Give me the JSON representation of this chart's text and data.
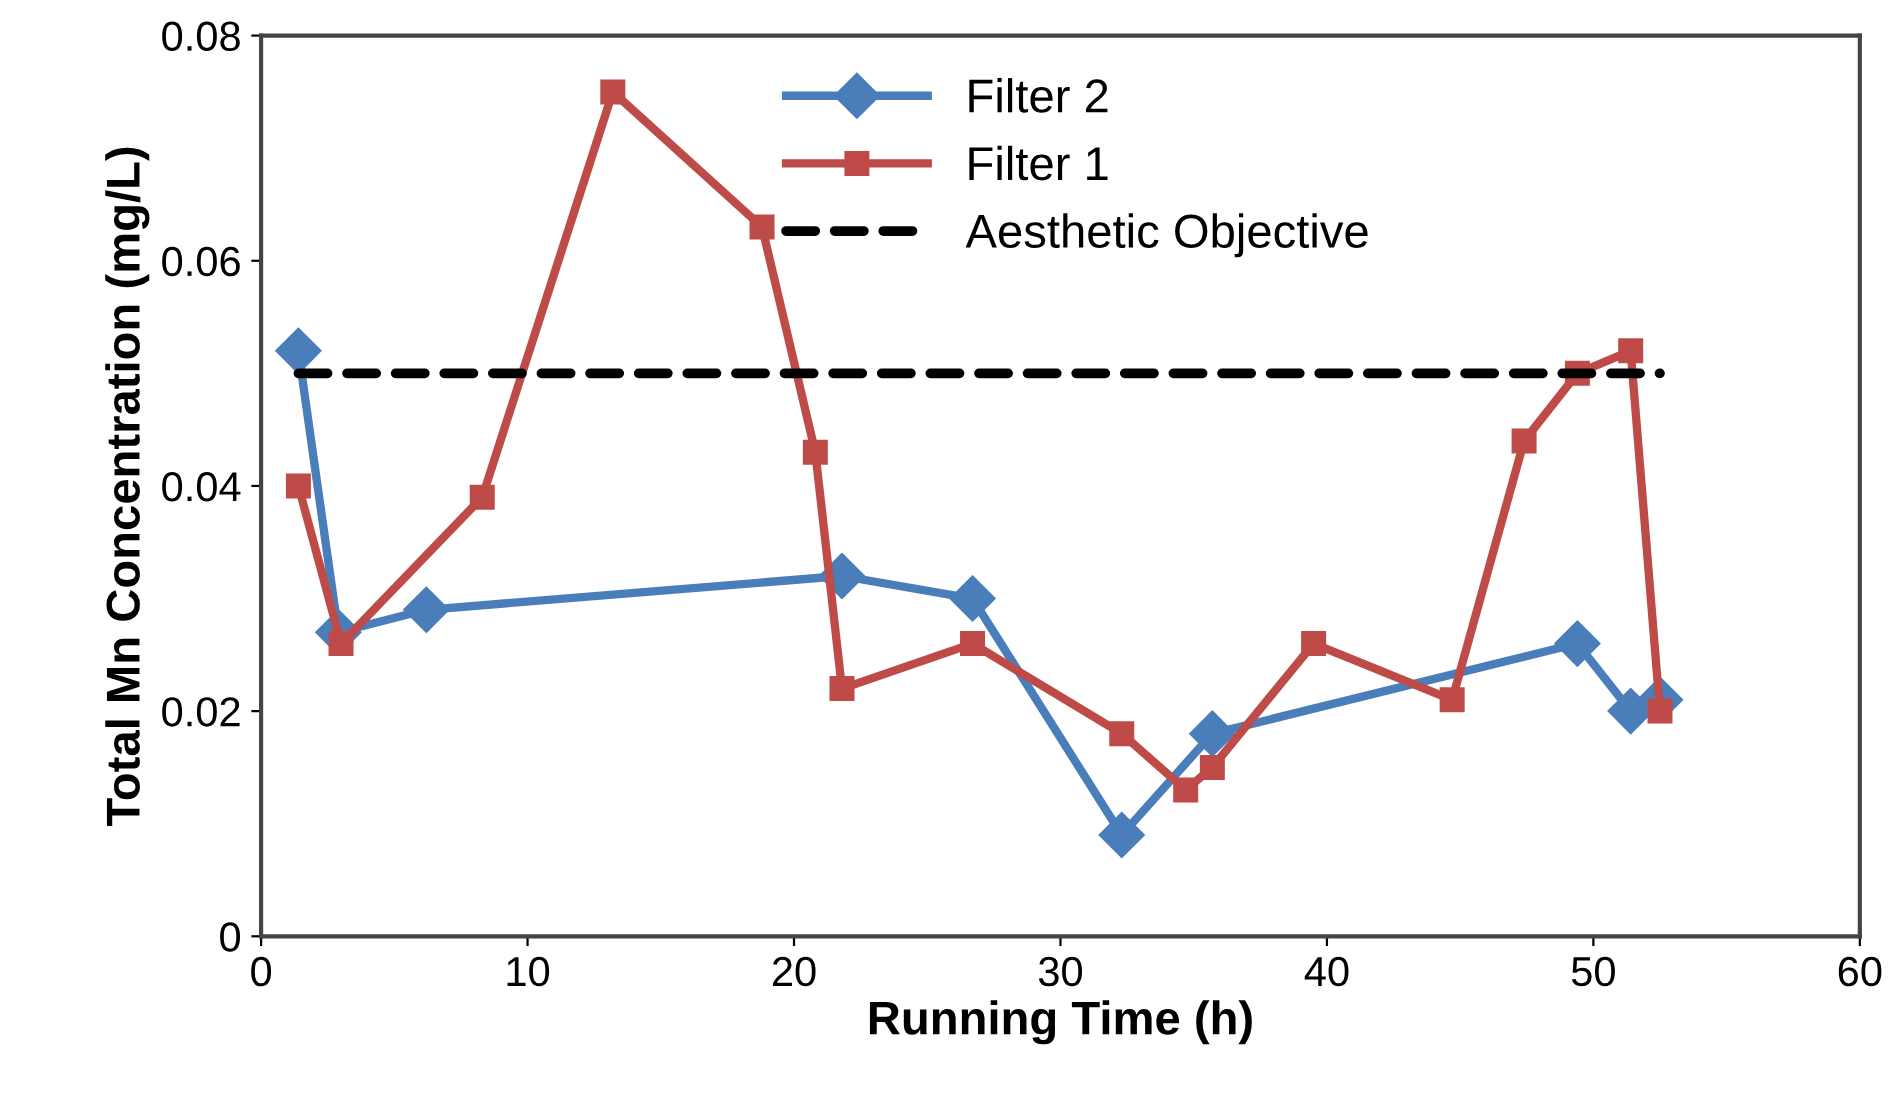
{
  "chart_data": {
    "type": "line",
    "xlabel": "Running Time (h)",
    "ylabel": "Total Mn Concentration (mg/L)",
    "xlim": [
      0,
      60
    ],
    "xticks": [
      0,
      10,
      20,
      30,
      40,
      50,
      60
    ],
    "ylim": [
      0,
      0.08
    ],
    "yticks": [
      0,
      0.02,
      0.04,
      0.06,
      0.08
    ],
    "grid": false,
    "legend": "top right",
    "series": [
      {
        "name": "Filter 2",
        "color": "#4a7ebb",
        "marker": "diamond",
        "line_style": "solid",
        "x": [
          1.4,
          2.9,
          6.2,
          21.8,
          26.7,
          32.3,
          35.7,
          49.4,
          51.4,
          52.5
        ],
        "values": [
          0.052,
          0.027,
          0.029,
          0.032,
          0.03,
          0.009,
          0.018,
          0.026,
          0.02,
          0.021
        ]
      },
      {
        "name": "Filter 1",
        "color": "#be4b48",
        "marker": "square",
        "line_style": "solid",
        "x": [
          1.4,
          3.0,
          8.3,
          13.2,
          18.8,
          20.8,
          21.8,
          26.7,
          32.3,
          34.7,
          35.7,
          39.5,
          44.7,
          47.4,
          49.4,
          51.4,
          52.5
        ],
        "values": [
          0.04,
          0.026,
          0.039,
          0.075,
          0.063,
          0.043,
          0.022,
          0.026,
          0.018,
          0.013,
          0.015,
          0.026,
          0.021,
          0.044,
          0.05,
          0.052,
          0.02
        ]
      },
      {
        "name": "Aesthetic Objective",
        "color": "#000000",
        "marker": "none",
        "line_style": "dashed",
        "x": [
          1.4,
          52.5
        ],
        "values": [
          0.05,
          0.05
        ]
      }
    ]
  }
}
